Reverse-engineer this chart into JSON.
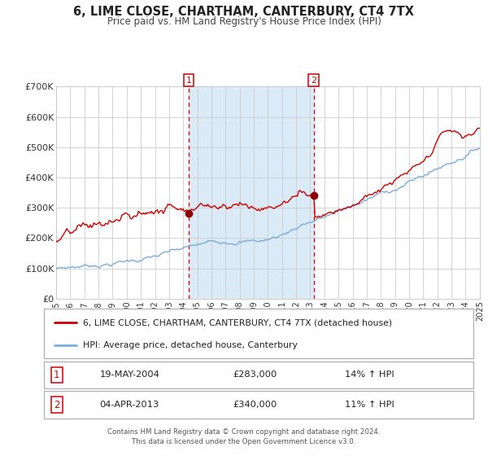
{
  "title": "6, LIME CLOSE, CHARTHAM, CANTERBURY, CT4 7TX",
  "subtitle": "Price paid vs. HM Land Registry's House Price Index (HPI)",
  "x_start": 1995.0,
  "x_end": 2025.0,
  "y_min": 0,
  "y_max": 700000,
  "y_ticks": [
    0,
    100000,
    200000,
    300000,
    400000,
    500000,
    600000,
    700000
  ],
  "shade_start": 2004.38,
  "shade_end": 2013.25,
  "vline1_x": 2004.38,
  "vline2_x": 2013.25,
  "marker1_x": 2004.38,
  "marker1_y": 283000,
  "marker2_x": 2013.25,
  "marker2_y": 340000,
  "red_color": "#cc0000",
  "blue_color": "#7aaddc",
  "shade_color": "#daeaf6",
  "background_color": "#ffffff",
  "grid_color": "#cccccc",
  "legend_line1": "6, LIME CLOSE, CHARTHAM, CANTERBURY, CT4 7TX (detached house)",
  "legend_line2": "HPI: Average price, detached house, Canterbury",
  "table_row1_num": "1",
  "table_row1_date": "19-MAY-2004",
  "table_row1_price": "£283,000",
  "table_row1_hpi": "14% ↑ HPI",
  "table_row2_num": "2",
  "table_row2_date": "04-APR-2013",
  "table_row2_price": "£340,000",
  "table_row2_hpi": "11% ↑ HPI",
  "footer1": "Contains HM Land Registry data © Crown copyright and database right 2024.",
  "footer2": "This data is licensed under the Open Government Licence v3.0.",
  "x_tick_years": [
    1995,
    1996,
    1997,
    1998,
    1999,
    2000,
    2001,
    2002,
    2003,
    2004,
    2005,
    2006,
    2007,
    2008,
    2009,
    2010,
    2011,
    2012,
    2013,
    2014,
    2015,
    2016,
    2017,
    2018,
    2019,
    2020,
    2021,
    2022,
    2023,
    2024,
    2025
  ]
}
